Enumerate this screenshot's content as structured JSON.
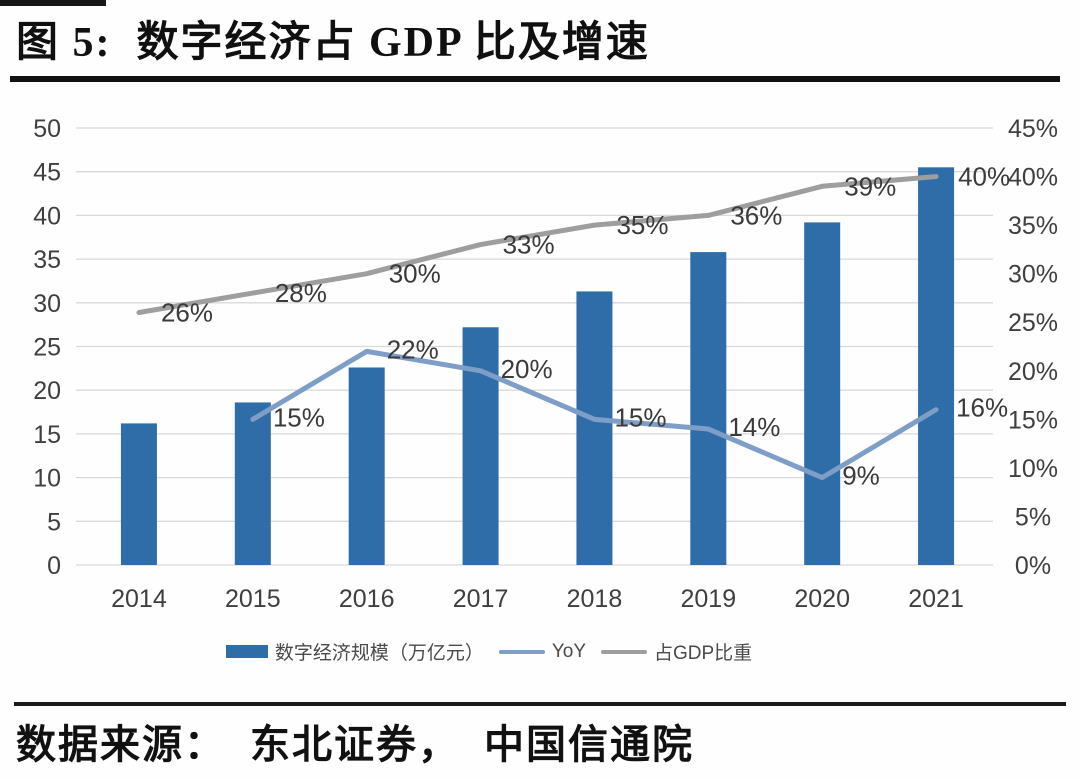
{
  "figure": {
    "title": "图 5:  数字经济占 GDP 比及增速",
    "source": "数据来源：  东北证券，  中国信通院"
  },
  "chart_data": {
    "type": "bar+line combo",
    "title": "数字经济占GDP比及增速",
    "categories": [
      "2014",
      "2015",
      "2016",
      "2017",
      "2018",
      "2019",
      "2020",
      "2021"
    ],
    "series": [
      {
        "name": "数字经济规模（万亿元）",
        "type": "bar",
        "axis": "left",
        "color": "#2E6DA8",
        "values": [
          16.2,
          18.6,
          22.6,
          27.2,
          31.3,
          35.8,
          39.2,
          45.5
        ]
      },
      {
        "name": "YoY",
        "type": "line",
        "axis": "right",
        "color": "#7E9EC8",
        "values": [
          null,
          15,
          22,
          20,
          15,
          14,
          9,
          16
        ],
        "labels": [
          null,
          "15%",
          "22%",
          "20%",
          "15%",
          "14%",
          "9%",
          "16%"
        ]
      },
      {
        "name": "占GDP比重",
        "type": "line",
        "axis": "right",
        "color": "#9E9E9E",
        "values": [
          26,
          28,
          30,
          33,
          35,
          36,
          39,
          40
        ],
        "labels": [
          "26%",
          "28%",
          "30%",
          "33%",
          "35%",
          "36%",
          "39%",
          "40%"
        ]
      }
    ],
    "left_axis": {
      "min": 0,
      "max": 50,
      "step": 5,
      "ticks": [
        "0",
        "5",
        "10",
        "15",
        "20",
        "25",
        "30",
        "35",
        "40",
        "45",
        "50"
      ]
    },
    "right_axis": {
      "min": 0,
      "max": 45,
      "step": 5,
      "ticks": [
        "0%",
        "5%",
        "10%",
        "15%",
        "20%",
        "25%",
        "30%",
        "35%",
        "40%",
        "45%"
      ]
    },
    "grid": true,
    "grid_color": "#d9d9d9",
    "legend_position": "bottom"
  }
}
